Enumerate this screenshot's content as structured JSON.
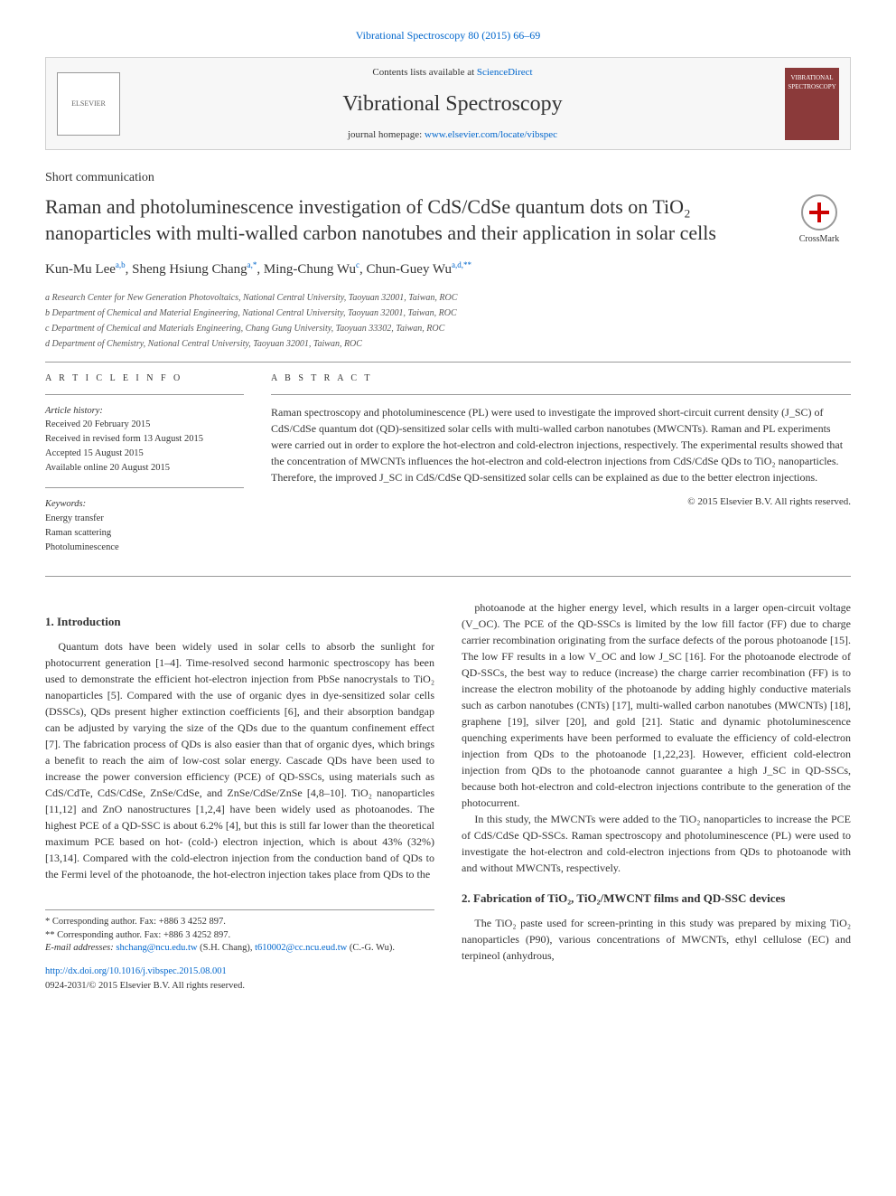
{
  "top_link": "Vibrational Spectroscopy 80 (2015) 66–69",
  "header": {
    "contents_text": "Contents lists available at ",
    "contents_link": "ScienceDirect",
    "journal": "Vibrational Spectroscopy",
    "homepage_label": "journal homepage: ",
    "homepage_url": "www.elsevier.com/locate/vibspec",
    "elsevier": "ELSEVIER",
    "cover_text": "VIBRATIONAL SPECTROSCOPY"
  },
  "short_comm": "Short communication",
  "title": "Raman and photoluminescence investigation of CdS/CdSe quantum dots on TiO₂ nanoparticles with multi-walled carbon nanotubes and their application in solar cells",
  "crossmark": "CrossMark",
  "authors_html": "Kun-Mu Lee<sup class='sup'>a,b</sup>, Sheng Hsiung Chang<sup class='sup'>a,*</sup>, Ming-Chung Wu<sup class='sup'>c</sup>, Chun-Guey Wu<sup class='sup'>a,d,**</sup>",
  "affiliations": [
    "a Research Center for New Generation Photovoltaics, National Central University, Taoyuan 32001, Taiwan, ROC",
    "b Department of Chemical and Material Engineering, National Central University, Taoyuan 32001, Taiwan, ROC",
    "c Department of Chemical and Materials Engineering, Chang Gung University, Taoyuan 33302, Taiwan, ROC",
    "d Department of Chemistry, National Central University, Taoyuan 32001, Taiwan, ROC"
  ],
  "article_info_label": "A R T I C L E  I N F O",
  "abstract_label": "A B S T R A C T",
  "history": {
    "hd": "Article history:",
    "received": "Received 20 February 2015",
    "revised": "Received in revised form 13 August 2015",
    "accepted": "Accepted 15 August 2015",
    "online": "Available online 20 August 2015"
  },
  "keywords": {
    "hd": "Keywords:",
    "items": [
      "Energy transfer",
      "Raman scattering",
      "Photoluminescence"
    ]
  },
  "abstract_text": "Raman spectroscopy and photoluminescence (PL) were used to investigate the improved short-circuit current density (J_SC) of CdS/CdSe quantum dot (QD)-sensitized solar cells with multi-walled carbon nanotubes (MWCNTs). Raman and PL experiments were carried out in order to explore the hot-electron and cold-electron injections, respectively. The experimental results showed that the concentration of MWCNTs influences the hot-electron and cold-electron injections from CdS/CdSe QDs to TiO₂ nanoparticles. Therefore, the improved J_SC in CdS/CdSe QD-sensitized solar cells can be explained as due to the better electron injections.",
  "copyright": "© 2015 Elsevier B.V. All rights reserved.",
  "sections": {
    "intro_hd": "1. Introduction",
    "intro_p1": "Quantum dots have been widely used in solar cells to absorb the sunlight for photocurrent generation [1–4]. Time-resolved second harmonic spectroscopy has been used to demonstrate the efficient hot-electron injection from PbSe nanocrystals to TiO₂ nanoparticles [5]. Compared with the use of organic dyes in dye-sensitized solar cells (DSSCs), QDs present higher extinction coefficients [6], and their absorption bandgap can be adjusted by varying the size of the QDs due to the quantum confinement effect [7]. The fabrication process of QDs is also easier than that of organic dyes, which brings a benefit to reach the aim of low-cost solar energy. Cascade QDs have been used to increase the power conversion efficiency (PCE) of QD-SSCs, using materials such as CdS/CdTe, CdS/CdSe, ZnSe/CdSe, and ZnSe/CdSe/ZnSe [4,8–10]. TiO₂ nanoparticles [11,12] and ZnO nanostructures [1,2,4] have been widely used as photoanodes. The highest PCE of a QD-SSC is about 6.2% [4], but this is still far lower than the theoretical maximum PCE based on hot- (cold-) electron injection, which is about 43% (32%) [13,14]. Compared with the cold-electron injection from the conduction band of QDs to the Fermi level of the photoanode, the hot-electron injection takes place from QDs to the",
    "intro_p2": "photoanode at the higher energy level, which results in a larger open-circuit voltage (V_OC). The PCE of the QD-SSCs is limited by the low fill factor (FF) due to charge carrier recombination originating from the surface defects of the porous photoanode [15]. The low FF results in a low V_OC and low J_SC [16]. For the photoanode electrode of QD-SSCs, the best way to reduce (increase) the charge carrier recombination (FF) is to increase the electron mobility of the photoanode by adding highly conductive materials such as carbon nanotubes (CNTs) [17], multi-walled carbon nanotubes (MWCNTs) [18], graphene [19], silver [20], and gold [21]. Static and dynamic photoluminescence quenching experiments have been performed to evaluate the efficiency of cold-electron injection from QDs to the photoanode [1,22,23]. However, efficient cold-electron injection from QDs to the photoanode cannot guarantee a high J_SC in QD-SSCs, because both hot-electron and cold-electron injections contribute to the generation of the photocurrent.",
    "intro_p3": "In this study, the MWCNTs were added to the TiO₂ nanoparticles to increase the PCE of CdS/CdSe QD-SSCs. Raman spectroscopy and photoluminescence (PL) were used to investigate the hot-electron and cold-electron injections from QDs to photoanode with and without MWCNTs, respectively.",
    "fab_hd": "2. Fabrication of TiO₂, TiO₂/MWCNT films and QD-SSC devices",
    "fab_p1": "The TiO₂ paste used for screen-printing in this study was prepared by mixing TiO₂ nanoparticles (P90), various concentrations of MWCNTs, ethyl cellulose (EC) and terpineol (anhydrous,"
  },
  "footnotes": {
    "c1": "* Corresponding author. Fax: +886 3 4252 897.",
    "c2": "** Corresponding author. Fax: +886 3 4252 897.",
    "email_label": "E-mail addresses: ",
    "email1": "shchang@ncu.edu.tw",
    "email1_who": " (S.H. Chang), ",
    "email2": "t610002@cc.ncu.eud.tw",
    "email2_who": " (C.-G. Wu)."
  },
  "doi": {
    "url": "http://dx.doi.org/10.1016/j.vibspec.2015.08.001",
    "line2": "0924-2031/© 2015 Elsevier B.V. All rights reserved."
  },
  "refs": [
    "[1–4]",
    "[5]",
    "[6]",
    "[7]",
    "[4,8–10]",
    "[11,12]",
    "[1,2,4]",
    "[4]",
    "[13,14]",
    "[15]",
    "[16]",
    "[17]",
    "[18]",
    "[19]",
    "[20]",
    "[21]",
    "[1,22,23]"
  ],
  "colors": {
    "link": "#0066cc",
    "text": "#333333",
    "cover": "#8b3a3a",
    "border": "#d0d0d0",
    "header_bg": "#f7f7f7"
  }
}
